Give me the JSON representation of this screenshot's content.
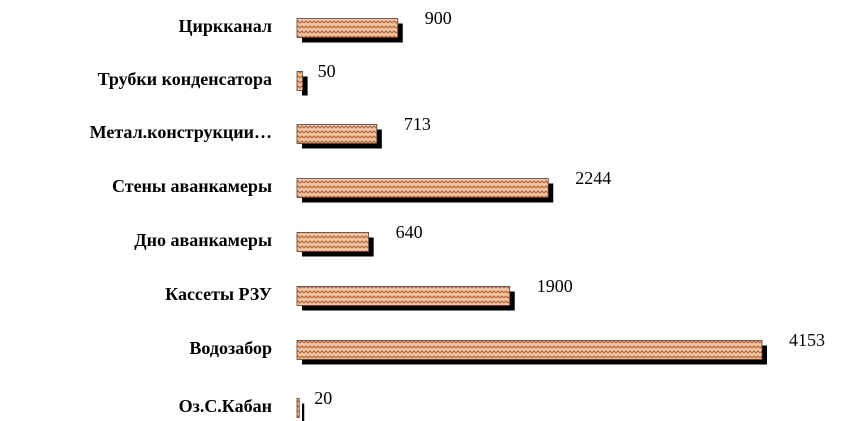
{
  "chart_data": {
    "type": "bar",
    "orientation": "horizontal",
    "categories": [
      "Циркканал",
      "Трубки конденсатора",
      "Метал.конструкции…",
      "Стены аванкамеры",
      "Дно аванкамеры",
      "Кассеты РЗУ",
      "Водозабор",
      "Оз.С.Кабан"
    ],
    "values": [
      900,
      50,
      713,
      2244,
      640,
      1900,
      4153,
      20
    ],
    "color": "#f0c4a4",
    "pattern_color": "#b0602e",
    "shadow_color": "#000000"
  }
}
